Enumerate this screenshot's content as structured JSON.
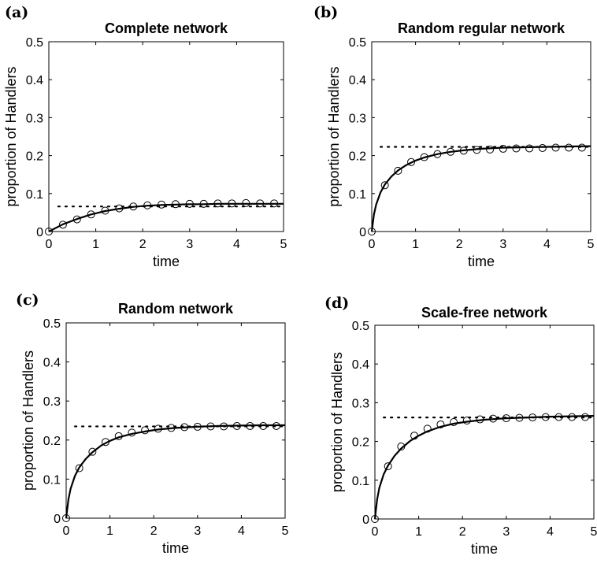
{
  "chart_data": [
    {
      "panel": "(a)",
      "type": "line",
      "title": "Complete network",
      "xlabel": "time",
      "ylabel": "proportion of Handlers",
      "xlim": [
        0,
        5
      ],
      "ylim": [
        0,
        0.5
      ],
      "xticks": [
        "0",
        "1",
        "2",
        "3",
        "4",
        "5"
      ],
      "yticks": [
        "0",
        "0.1",
        "0.2",
        "0.3",
        "0.4",
        "0.5"
      ],
      "grid": false,
      "curve": {
        "x": [
          0,
          0.3,
          0.6,
          0.9,
          1.2,
          1.5,
          1.8,
          2.1,
          2.4,
          2.7,
          3.0,
          3.3,
          3.6,
          3.9,
          4.2,
          4.5,
          4.8,
          5.0
        ],
        "y": [
          0,
          0.019,
          0.033,
          0.045,
          0.054,
          0.06,
          0.065,
          0.068,
          0.07,
          0.071,
          0.072,
          0.072,
          0.073,
          0.073,
          0.073,
          0.073,
          0.073,
          0.073
        ]
      },
      "markers": {
        "x": [
          0,
          0.3,
          0.6,
          0.9,
          1.2,
          1.5,
          1.8,
          2.1,
          2.4,
          2.7,
          3.0,
          3.3,
          3.6,
          3.9,
          4.2,
          4.5,
          4.8
        ],
        "y": [
          0,
          0.018,
          0.032,
          0.045,
          0.055,
          0.061,
          0.066,
          0.069,
          0.071,
          0.072,
          0.073,
          0.073,
          0.074,
          0.074,
          0.075,
          0.074,
          0.074
        ]
      },
      "reference": {
        "y": 0.066,
        "x_start": 0.2,
        "x_end": 5
      }
    },
    {
      "panel": "(b)",
      "type": "line",
      "title": "Random regular network",
      "xlabel": "time",
      "ylabel": "proportion of Handlers",
      "xlim": [
        0,
        5
      ],
      "ylim": [
        0,
        0.5
      ],
      "xticks": [
        "0",
        "1",
        "2",
        "3",
        "4",
        "5"
      ],
      "yticks": [
        "0",
        "0.1",
        "0.2",
        "0.3",
        "0.4",
        "0.5"
      ],
      "grid": false,
      "curve": {
        "x": [
          0,
          0.05,
          0.1,
          0.2,
          0.3,
          0.45,
          0.6,
          0.8,
          1.0,
          1.2,
          1.5,
          1.8,
          2.1,
          2.5,
          3.0,
          3.5,
          4.0,
          4.5,
          5.0
        ],
        "y": [
          0,
          0.045,
          0.071,
          0.103,
          0.124,
          0.145,
          0.161,
          0.176,
          0.187,
          0.195,
          0.204,
          0.21,
          0.214,
          0.218,
          0.221,
          0.222,
          0.223,
          0.224,
          0.225
        ]
      },
      "markers": {
        "x": [
          0,
          0.3,
          0.6,
          0.9,
          1.2,
          1.5,
          1.8,
          2.1,
          2.4,
          2.7,
          3.0,
          3.3,
          3.6,
          3.9,
          4.2,
          4.5,
          4.8
        ],
        "y": [
          0,
          0.122,
          0.16,
          0.183,
          0.196,
          0.204,
          0.21,
          0.213,
          0.215,
          0.216,
          0.218,
          0.219,
          0.219,
          0.22,
          0.221,
          0.221,
          0.221
        ]
      },
      "reference": {
        "y": 0.223,
        "x_start": 0.2,
        "x_end": 5
      }
    },
    {
      "panel": "(c)",
      "type": "line",
      "title": "Random network",
      "xlabel": "time",
      "ylabel": "proportion of Handlers",
      "xlim": [
        0,
        5
      ],
      "ylim": [
        0,
        0.5
      ],
      "xticks": [
        "0",
        "1",
        "2",
        "3",
        "4",
        "5"
      ],
      "yticks": [
        "0",
        "0.1",
        "0.2",
        "0.3",
        "0.4",
        "0.5"
      ],
      "grid": false,
      "curve": {
        "x": [
          0,
          0.05,
          0.1,
          0.2,
          0.3,
          0.45,
          0.6,
          0.8,
          1.0,
          1.2,
          1.5,
          1.8,
          2.1,
          2.5,
          3.0,
          3.5,
          4.0,
          4.5,
          5.0
        ],
        "y": [
          0,
          0.047,
          0.075,
          0.108,
          0.13,
          0.152,
          0.169,
          0.186,
          0.198,
          0.207,
          0.216,
          0.222,
          0.227,
          0.231,
          0.234,
          0.236,
          0.237,
          0.238,
          0.238
        ]
      },
      "markers": {
        "x": [
          0,
          0.3,
          0.6,
          0.9,
          1.2,
          1.5,
          1.8,
          2.1,
          2.4,
          2.7,
          3.0,
          3.3,
          3.6,
          3.9,
          4.2,
          4.5,
          4.8
        ],
        "y": [
          0,
          0.128,
          0.17,
          0.195,
          0.21,
          0.219,
          0.225,
          0.229,
          0.231,
          0.233,
          0.234,
          0.235,
          0.235,
          0.236,
          0.236,
          0.236,
          0.236
        ]
      },
      "reference": {
        "y": 0.235,
        "x_start": 0.2,
        "x_end": 5
      }
    },
    {
      "panel": "(d)",
      "type": "line",
      "title": "Scale-free network",
      "xlabel": "time",
      "ylabel": "proportion of Handlers",
      "xlim": [
        0,
        5
      ],
      "ylim": [
        0,
        0.5
      ],
      "xticks": [
        "0",
        "1",
        "2",
        "3",
        "4",
        "5"
      ],
      "yticks": [
        "0",
        "0.1",
        "0.2",
        "0.3",
        "0.4",
        "0.5"
      ],
      "grid": false,
      "curve": {
        "x": [
          0,
          0.05,
          0.1,
          0.2,
          0.3,
          0.45,
          0.6,
          0.8,
          1.0,
          1.2,
          1.5,
          1.8,
          2.1,
          2.5,
          3.0,
          3.5,
          4.0,
          4.5,
          5.0
        ],
        "y": [
          0,
          0.05,
          0.08,
          0.115,
          0.138,
          0.163,
          0.182,
          0.201,
          0.215,
          0.226,
          0.238,
          0.246,
          0.251,
          0.256,
          0.26,
          0.262,
          0.264,
          0.265,
          0.266
        ]
      },
      "markers": {
        "x": [
          0,
          0.3,
          0.6,
          0.9,
          1.2,
          1.5,
          1.8,
          2.1,
          2.4,
          2.7,
          3.0,
          3.3,
          3.6,
          3.9,
          4.2,
          4.5,
          4.8
        ],
        "y": [
          0,
          0.136,
          0.187,
          0.215,
          0.233,
          0.244,
          0.25,
          0.254,
          0.257,
          0.259,
          0.26,
          0.261,
          0.262,
          0.263,
          0.263,
          0.263,
          0.263
        ]
      },
      "reference": {
        "y": 0.262,
        "x_start": 0.2,
        "x_end": 5
      }
    }
  ]
}
